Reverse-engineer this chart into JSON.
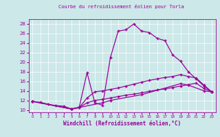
{
  "title": "Courbe du refroidissement éolien pour Torla",
  "xlabel": "Windchill (Refroidissement éolien,°C)",
  "bg_color": "#cce8e8",
  "line_color": "#990099",
  "xlim": [
    -0.5,
    23.5
  ],
  "ylim": [
    9.5,
    29
  ],
  "xticks": [
    0,
    1,
    2,
    3,
    4,
    5,
    6,
    7,
    8,
    9,
    10,
    11,
    12,
    13,
    14,
    15,
    16,
    17,
    18,
    19,
    20,
    21,
    22,
    23
  ],
  "yticks": [
    10,
    12,
    14,
    16,
    18,
    20,
    22,
    24,
    26,
    28
  ],
  "curve1_x": [
    0,
    1,
    2,
    3,
    4,
    5,
    6,
    7,
    8,
    9,
    10,
    11,
    12,
    13,
    14,
    15,
    16,
    17,
    18,
    19,
    20,
    21,
    22,
    23
  ],
  "curve1_y": [
    11.8,
    11.6,
    11.2,
    10.9,
    10.8,
    10.2,
    10.6,
    17.8,
    11.5,
    11.0,
    21.0,
    26.5,
    26.8,
    28.0,
    26.5,
    26.2,
    25.0,
    24.5,
    21.5,
    20.2,
    18.0,
    16.5,
    15.0,
    13.8
  ],
  "curve2_x": [
    0,
    5,
    6,
    7,
    8,
    9,
    10,
    11,
    12,
    13,
    14,
    15,
    16,
    17,
    18,
    19,
    20,
    21,
    22,
    23
  ],
  "curve2_y": [
    11.8,
    10.2,
    10.5,
    12.5,
    13.8,
    14.0,
    14.3,
    14.6,
    15.0,
    15.4,
    15.8,
    16.2,
    16.5,
    16.8,
    17.0,
    17.4,
    17.0,
    16.7,
    15.2,
    13.8
  ],
  "curve3_x": [
    0,
    5,
    6,
    7,
    8,
    9,
    10,
    11,
    12,
    13,
    14,
    15,
    16,
    17,
    18,
    19,
    20,
    21,
    22,
    23
  ],
  "curve3_y": [
    11.8,
    10.2,
    10.5,
    11.5,
    12.0,
    12.2,
    12.5,
    12.8,
    13.1,
    13.3,
    13.6,
    13.9,
    14.2,
    14.4,
    14.7,
    15.0,
    15.3,
    15.6,
    14.5,
    13.8
  ],
  "curve4_x": [
    0,
    5,
    9,
    10,
    14,
    19,
    20,
    22,
    23
  ],
  "curve4_y": [
    11.8,
    10.2,
    11.5,
    12.0,
    13.2,
    15.5,
    15.2,
    14.0,
    13.8
  ]
}
